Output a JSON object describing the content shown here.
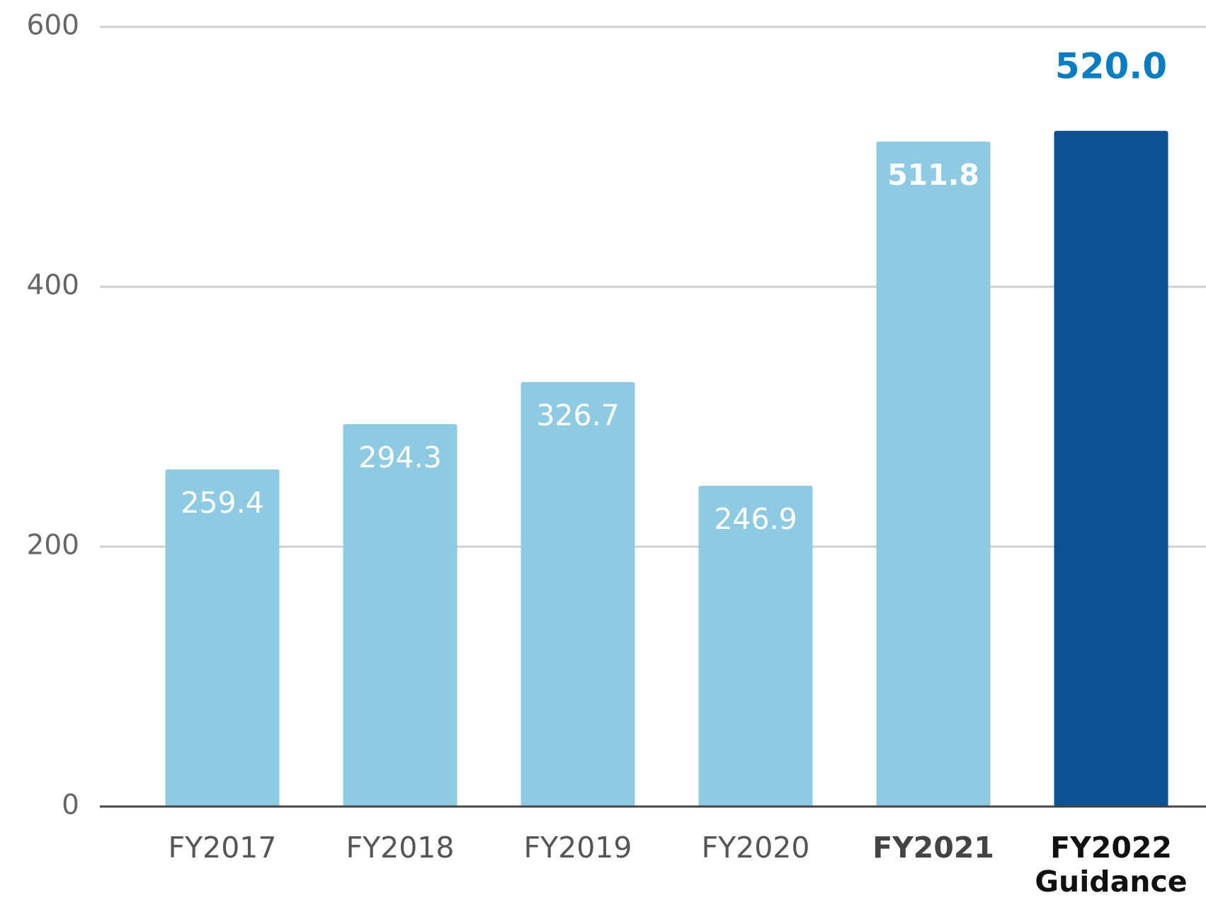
{
  "chart_data": {
    "type": "bar",
    "categories": [
      "FY2017",
      "FY2018",
      "FY2019",
      "FY2020",
      "FY2021",
      "FY2022 Guidance"
    ],
    "values": [
      259.4,
      294.3,
      326.7,
      246.9,
      511.8,
      520
    ],
    "value_labels": [
      "259.4",
      "294.3",
      "326.7",
      "246.9",
      "511.8",
      "520.0"
    ],
    "colors": [
      "#8ecbe3",
      "#8ecbe3",
      "#8ecbe3",
      "#8ecbe3",
      "#8ecbe3",
      "#0e5192"
    ],
    "ylim": [
      0,
      600
    ],
    "yticks": [
      0,
      200,
      400,
      600
    ],
    "grid": true
  }
}
